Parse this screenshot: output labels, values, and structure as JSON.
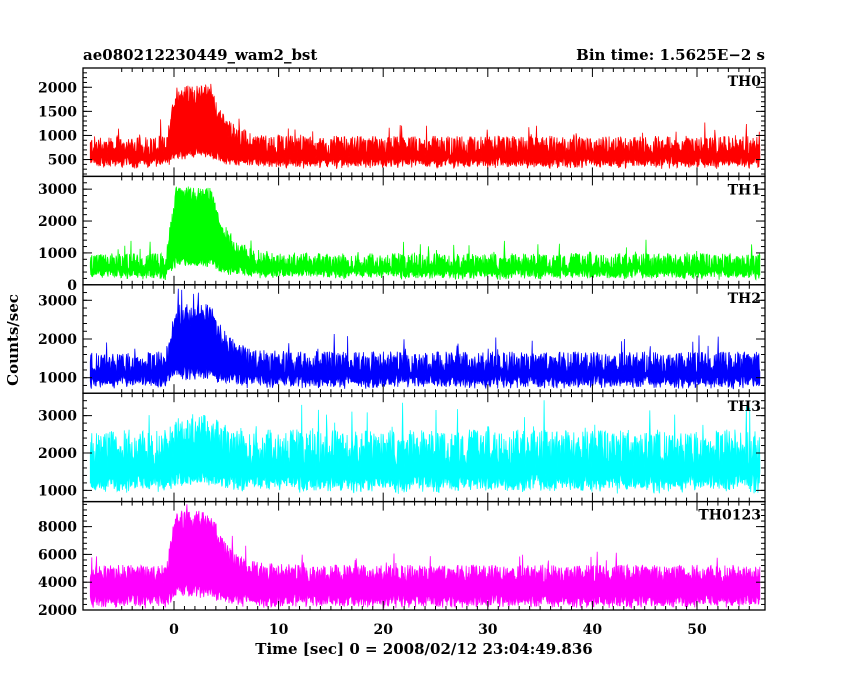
{
  "header": {
    "title": "ae080212230449_wam2_bst",
    "bin_time": "Bin time: 1.5625E−2 s"
  },
  "chart_data": {
    "type": "line",
    "xlabel": "Time [sec] 0 = 2008/02/12 23:04:49.836",
    "ylabel": "Counts/sec",
    "xlim": [
      -8.7,
      56.5
    ],
    "xticks": [
      0,
      10,
      20,
      30,
      40,
      50
    ],
    "x_range_data": [
      -8,
      56
    ],
    "burst": {
      "peak_start": 0.2,
      "peak_end": 3.5,
      "decay_end": 8
    },
    "panels": [
      {
        "name": "TH0",
        "color": "#ff0000",
        "ylim": [
          150,
          2400
        ],
        "yticks": [
          500,
          1000,
          1500,
          2000
        ],
        "baseline": 700,
        "noise": 260,
        "peak": 1750,
        "dip_low": 300,
        "dip_high": 500
      },
      {
        "name": "TH1",
        "color": "#00ff00",
        "ylim": [
          0,
          3400
        ],
        "yticks": [
          0,
          1000,
          2000,
          3000
        ],
        "baseline": 600,
        "noise": 350,
        "peak": 2700,
        "dip_low": 150,
        "dip_high": 450
      },
      {
        "name": "TH2",
        "color": "#0000ff",
        "ylim": [
          600,
          3400
        ],
        "yticks": [
          1000,
          2000,
          3000
        ],
        "baseline": 1250,
        "noise": 380,
        "peak": 2500,
        "dip_low": 700,
        "dip_high": 1000
      },
      {
        "name": "TH3",
        "color": "#00ffff",
        "ylim": [
          700,
          3600
        ],
        "yticks": [
          1000,
          2000,
          3000
        ],
        "baseline": 1900,
        "noise": 650,
        "peak": 2300,
        "dip_low": 900,
        "dip_high": 1300
      },
      {
        "name": "TH0123",
        "color": "#ff00ff",
        "ylim": [
          2000,
          9800
        ],
        "yticks": [
          2000,
          4000,
          6000,
          8000
        ],
        "baseline": 4300,
        "noise": 850,
        "peak": 8200,
        "dip_low": 2100,
        "dip_high": 3000
      }
    ]
  }
}
